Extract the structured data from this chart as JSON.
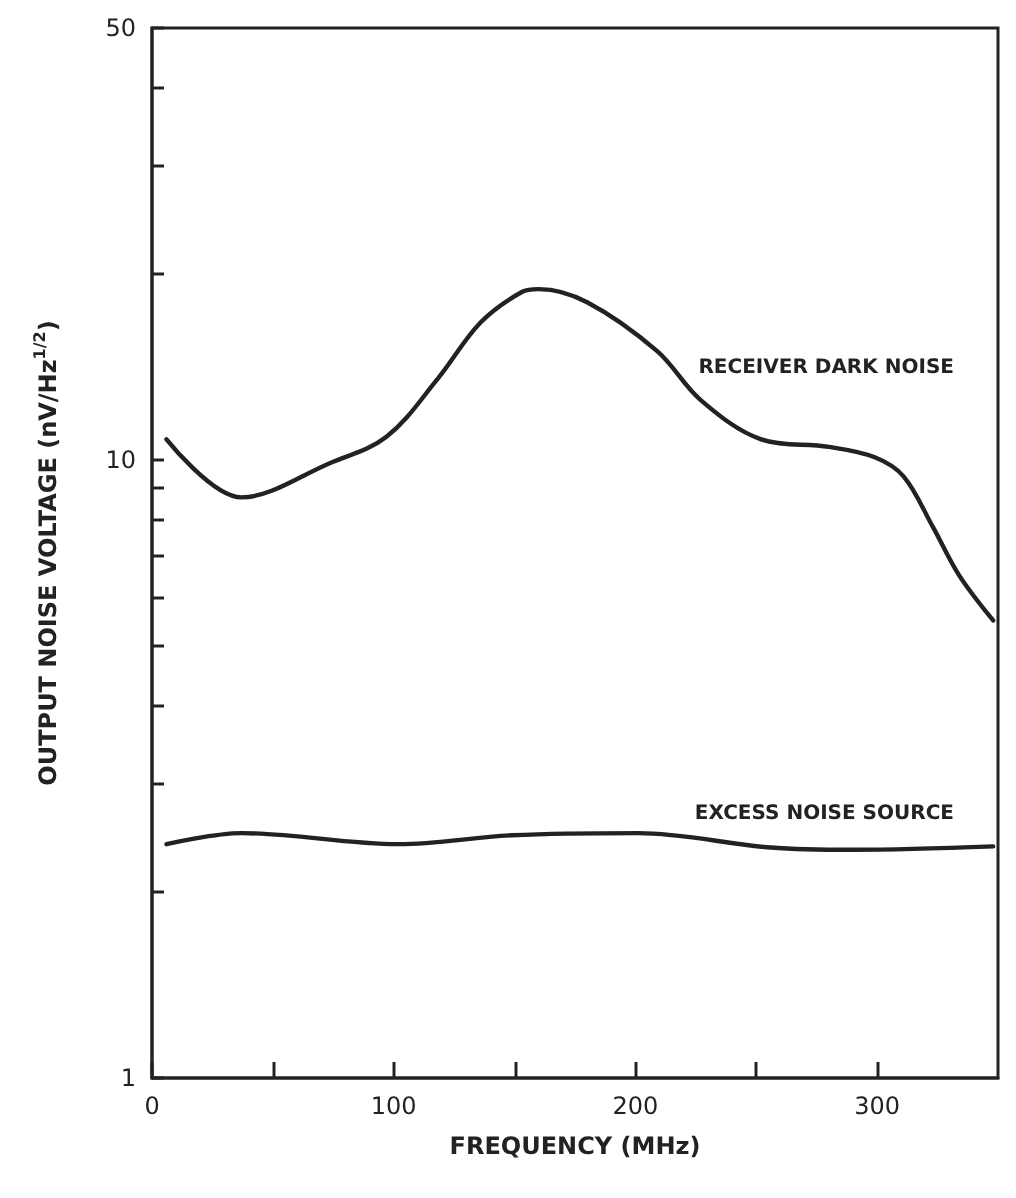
{
  "chart_data": {
    "type": "line",
    "xlabel": "FREQUENCY (MHz)",
    "ylabel": "OUTPUT NOISE VOLTAGE (nV/Hz$^{1/2}$)",
    "log": "y",
    "xlim": [
      0,
      350
    ],
    "xticks": [
      0,
      {
        "value": 50,
        "label": null
      },
      100,
      {
        "value": 150,
        "label": null
      },
      200,
      {
        "value": 250,
        "label": null
      },
      300
    ],
    "ylim": [
      1,
      50
    ],
    "yticks": [
      1,
      {
        "value": 2,
        "label": null
      },
      {
        "value": 3,
        "label": null
      },
      {
        "value": 4,
        "label": null
      },
      {
        "value": 5,
        "label": null
      },
      {
        "value": 6,
        "label": null
      },
      {
        "value": 7,
        "label": null
      },
      {
        "value": 8,
        "label": null
      },
      {
        "value": 9,
        "label": null
      },
      10,
      {
        "value": 20,
        "label": null
      },
      {
        "value": 30,
        "label": null
      },
      {
        "value": 40,
        "label": null
      },
      50
    ],
    "grid": false,
    "legend": false,
    "marker": "none",
    "line_style": "solid",
    "series": [
      {
        "name": "RECEIVER DARK NOISE",
        "color": "#222222",
        "x": [
          6,
          37,
          74,
          97,
          118,
          136,
          153,
          160,
          180,
          209,
          227,
          252,
          280,
          299,
          311,
          323,
          334,
          348
        ],
        "values": [
          10.8,
          8.7,
          9.9,
          10.9,
          13.5,
          16.7,
          18.7,
          18.9,
          18.0,
          15.0,
          12.5,
          10.8,
          10.5,
          10.1,
          9.4,
          7.8,
          6.5,
          5.5
        ]
      },
      {
        "name": "EXCESS NOISE SOURCE",
        "color": "#222222",
        "x": [
          6,
          37,
          102,
          149,
          201,
          256,
          290,
          348
        ],
        "values": [
          2.39,
          2.49,
          2.39,
          2.47,
          2.49,
          2.36,
          2.34,
          2.37
        ]
      }
    ]
  }
}
